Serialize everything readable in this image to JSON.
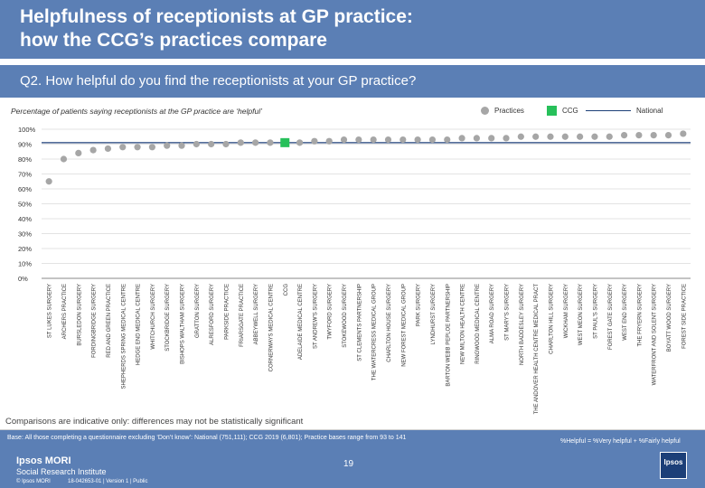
{
  "header": {
    "title": "Helpfulness of receptionists at GP practice:\nhow the CCG’s practices compare"
  },
  "question": "Q2. How helpful do you find the receptionists at your GP practice?",
  "subtitle": "Percentage of patients saying receptionists at the GP practice are ‘helpful’",
  "legend": {
    "practices": "Practices",
    "ccg": "CCG",
    "national": "National"
  },
  "colors": {
    "header": "#5b7fb5",
    "practice_marker": "#a6a6a6",
    "ccg_marker": "#27c05a",
    "national_line": "#1c3f78"
  },
  "chart_data": {
    "type": "scatter",
    "title": "Percentage of patients saying receptionists at the GP practice are ‘helpful’",
    "xlabel": "",
    "ylabel": "",
    "ylim": [
      0,
      100
    ],
    "yticks": [
      "0%",
      "10%",
      "20%",
      "30%",
      "40%",
      "50%",
      "60%",
      "70%",
      "80%",
      "90%",
      "100%"
    ],
    "national": 91,
    "ccg_index": 16,
    "categories": [
      "ST LUKES SURGERY",
      "ARCHERS PRACTICE",
      "BURSLEDON SURGERY",
      "FORDINGBRIDGE SURGERY",
      "RED AND GREEN PRACTICE",
      "SHEPHERDS SPRING MEDICAL CENTRE",
      "HEDGE END MEDICAL CENTRE",
      "WHITCHURCH SURGERY",
      "STOCKBRIDGE SURGERY",
      "BISHOPS WALTHAM SURGERY",
      "GRATTON SURGERY",
      "ALRESFORD SURGERY",
      "PARKSIDE PRACTICE",
      "FRIARSGATE PRACTICE",
      "ABBEYWELL SURGERY",
      "CORNERWAYS MEDICAL CENTRE",
      "CCG",
      "ADELAIDE MEDICAL CENTRE",
      "ST ANDREW'S SURGERY",
      "TWYFORD SURGERY",
      "STOKEWOOD SURGERY",
      "ST CLEMENTS PARTNERSHIP",
      "THE WATERCRESS MEDICAL GROUP",
      "CHARLTON HOUSE SURGERY",
      "NEW FOREST MEDICAL GROUP",
      "PARK SURGERY",
      "LYNDHURST SURGERY",
      "BARTON WEBB PEPLOE PARTNERSHIP",
      "NEW MILTON HEALTH CENTRE",
      "RINGWOOD MEDICAL CENTRE",
      "ALMA ROAD SURGERY",
      "ST MARY'S SURGERY",
      "NORTH BADDESLEY SURGERY",
      "THE ANDOVER HEALTH CENTRE MEDICAL PRACT",
      "CHARLTON HILL SURGERY",
      "WICKHAM SURGERY",
      "WEST MEON SURGERY",
      "ST PAUL'S SURGERY",
      "FOREST GATE SURGERY",
      "WEST END SURGERY",
      "THE FRYERN SURGERY",
      "WATERFRONT AND SOLENT SURGERY",
      "BOYATT WOOD SURGERY",
      "FOREST SIDE PRACTICE"
    ],
    "values": [
      65,
      80,
      84,
      86,
      87,
      88,
      88,
      88,
      89,
      89,
      90,
      90,
      90,
      91,
      91,
      91,
      91,
      91,
      92,
      92,
      93,
      93,
      93,
      93,
      93,
      93,
      93,
      93,
      94,
      94,
      94,
      94,
      95,
      95,
      95,
      95,
      95,
      95,
      95,
      96,
      96,
      96,
      96,
      97
    ]
  },
  "note": "Comparisons are indicative only: differences may not be statistically significant",
  "footer": {
    "base": "Base: All those completing a questionnaire excluding ‘Don’t know’: National (751,111); CCG 2019 (6,801); Practice bases range from 93 to 141",
    "definition": "%Helpful = %Very helpful + %Fairly helpful",
    "page": "19",
    "brand_line1": "Ipsos MORI",
    "brand_line2": "Social Research Institute",
    "copyright": "© Ipsos MORI",
    "job_ref": "18-042653-01 | Version 1 | Public",
    "logo_text": "Ipsos"
  }
}
